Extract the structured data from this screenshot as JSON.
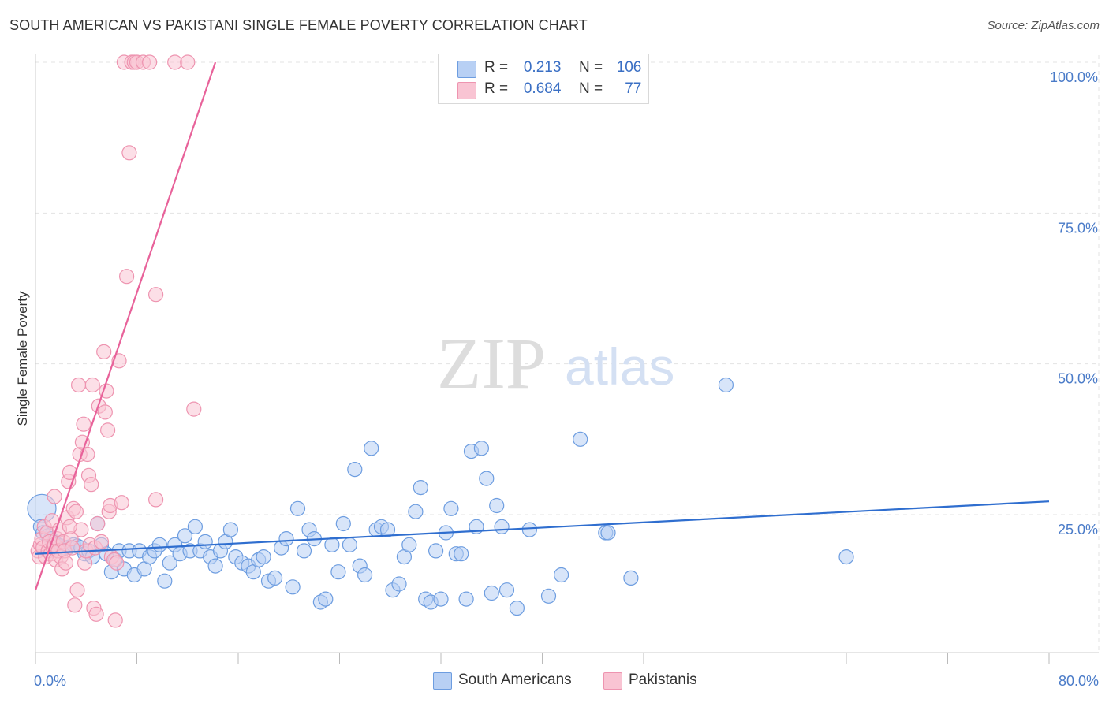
{
  "title": "SOUTH AMERICAN VS PAKISTANI SINGLE FEMALE POVERTY CORRELATION CHART",
  "source": "Source: ZipAtlas.com",
  "watermark": {
    "zip": "ZIP",
    "atlas": "atlas"
  },
  "legend": {
    "r_label": "R =",
    "n_label": "N =",
    "entries": [
      {
        "name": "South Americans",
        "r": "0.213",
        "n": "106",
        "fill": "#b8d0f4",
        "stroke": "#6d9de0"
      },
      {
        "name": "Pakistanis",
        "r": "0.684",
        "n": "77",
        "fill": "#f9c4d3",
        "stroke": "#ee94b0"
      }
    ]
  },
  "chart_data": {
    "type": "scatter",
    "title": "SOUTH AMERICAN VS PAKISTANI SINGLE FEMALE POVERTY CORRELATION CHART",
    "xlabel": "",
    "ylabel": "Single Female Poverty",
    "xlim": [
      0,
      85
    ],
    "ylim": [
      0,
      105
    ],
    "x_tick_labels": [
      "0.0%",
      "80.0%"
    ],
    "y_ticks": [
      25,
      50,
      75,
      100
    ],
    "y_tick_labels": [
      "25.0%",
      "50.0%",
      "75.0%",
      "100.0%"
    ],
    "grid": true,
    "series": [
      {
        "name": "South Americans",
        "color": "#6d9de0",
        "trend_color": "#2f6ecf",
        "trend": {
          "x0": 0,
          "y0": 18.5,
          "x1": 80,
          "y1": 27.2
        },
        "points": [
          [
            0.5,
            26.0
          ],
          [
            0.4,
            23.0
          ],
          [
            0.6,
            22.0
          ],
          [
            1.0,
            21.5
          ],
          [
            1.2,
            21.0
          ],
          [
            1.5,
            20.5
          ],
          [
            1.7,
            20.0
          ],
          [
            2.0,
            19.8
          ],
          [
            2.3,
            19.5
          ],
          [
            2.6,
            19.6
          ],
          [
            3.0,
            20.0
          ],
          [
            3.3,
            19.8
          ],
          [
            3.6,
            19.5
          ],
          [
            3.9,
            18.5
          ],
          [
            4.2,
            19.0
          ],
          [
            4.5,
            18.0
          ],
          [
            4.9,
            23.5
          ],
          [
            5.2,
            20.0
          ],
          [
            5.6,
            18.5
          ],
          [
            6.0,
            15.5
          ],
          [
            6.3,
            17.5
          ],
          [
            6.6,
            19.0
          ],
          [
            7.0,
            16.0
          ],
          [
            7.4,
            19.0
          ],
          [
            7.8,
            15.0
          ],
          [
            8.2,
            19.0
          ],
          [
            8.6,
            16.0
          ],
          [
            9.0,
            18.0
          ],
          [
            9.4,
            19.0
          ],
          [
            9.8,
            20.0
          ],
          [
            10.2,
            14.0
          ],
          [
            10.6,
            17.0
          ],
          [
            11.0,
            20.0
          ],
          [
            11.4,
            18.5
          ],
          [
            11.8,
            21.5
          ],
          [
            12.2,
            19.0
          ],
          [
            12.6,
            23.0
          ],
          [
            13.0,
            19.0
          ],
          [
            13.4,
            20.5
          ],
          [
            13.8,
            18.0
          ],
          [
            14.2,
            16.5
          ],
          [
            14.6,
            19.0
          ],
          [
            15.0,
            20.5
          ],
          [
            15.4,
            22.5
          ],
          [
            15.8,
            18.0
          ],
          [
            16.3,
            17.0
          ],
          [
            16.8,
            16.5
          ],
          [
            17.2,
            15.5
          ],
          [
            17.6,
            17.5
          ],
          [
            18.0,
            18.0
          ],
          [
            18.4,
            14.0
          ],
          [
            18.9,
            14.5
          ],
          [
            19.4,
            19.5
          ],
          [
            19.8,
            21.0
          ],
          [
            20.3,
            13.0
          ],
          [
            20.7,
            26.0
          ],
          [
            21.2,
            19.0
          ],
          [
            21.6,
            22.5
          ],
          [
            22.0,
            21.0
          ],
          [
            22.5,
            10.5
          ],
          [
            22.9,
            11.0
          ],
          [
            23.4,
            20.0
          ],
          [
            23.9,
            15.5
          ],
          [
            24.3,
            23.5
          ],
          [
            24.8,
            20.0
          ],
          [
            25.2,
            32.5
          ],
          [
            25.6,
            16.5
          ],
          [
            26.0,
            15.0
          ],
          [
            26.5,
            36.0
          ],
          [
            26.9,
            22.5
          ],
          [
            27.3,
            23.0
          ],
          [
            27.8,
            22.5
          ],
          [
            28.2,
            12.5
          ],
          [
            28.7,
            13.5
          ],
          [
            29.1,
            18.0
          ],
          [
            29.5,
            20.0
          ],
          [
            30.0,
            25.5
          ],
          [
            30.4,
            29.5
          ],
          [
            30.8,
            11.0
          ],
          [
            31.2,
            10.5
          ],
          [
            31.6,
            19.0
          ],
          [
            32.0,
            11.0
          ],
          [
            32.4,
            22.0
          ],
          [
            32.8,
            26.0
          ],
          [
            33.2,
            18.5
          ],
          [
            33.6,
            18.5
          ],
          [
            34.0,
            11.0
          ],
          [
            34.4,
            35.5
          ],
          [
            34.8,
            23.0
          ],
          [
            35.2,
            36.0
          ],
          [
            35.6,
            31.0
          ],
          [
            36.0,
            12.0
          ],
          [
            36.4,
            26.5
          ],
          [
            36.8,
            23.0
          ],
          [
            37.2,
            12.5
          ],
          [
            38.0,
            9.5
          ],
          [
            39.0,
            22.5
          ],
          [
            40.5,
            11.5
          ],
          [
            41.5,
            15.0
          ],
          [
            43.0,
            37.5
          ],
          [
            45.0,
            22.0
          ],
          [
            45.2,
            22.0
          ],
          [
            47.0,
            14.5
          ],
          [
            54.5,
            46.5
          ],
          [
            64.0,
            18.0
          ]
        ]
      },
      {
        "name": "Pakistanis",
        "color": "#ee94b0",
        "trend_color": "#e8629a",
        "trend": {
          "x0": 0,
          "y0": 12.5,
          "x1": 14.2,
          "y1": 100
        },
        "points": [
          [
            0.2,
            19.0
          ],
          [
            0.3,
            18.0
          ],
          [
            0.4,
            20.0
          ],
          [
            0.5,
            21.0
          ],
          [
            0.6,
            19.5
          ],
          [
            0.7,
            23.0
          ],
          [
            0.8,
            18.0
          ],
          [
            0.9,
            22.0
          ],
          [
            1.0,
            19.0
          ],
          [
            1.1,
            20.5
          ],
          [
            1.2,
            18.5
          ],
          [
            1.3,
            24.0
          ],
          [
            1.4,
            19.5
          ],
          [
            1.5,
            20.0
          ],
          [
            1.6,
            17.5
          ],
          [
            1.7,
            21.0
          ],
          [
            1.8,
            19.0
          ],
          [
            1.9,
            22.5
          ],
          [
            2.0,
            18.0
          ],
          [
            2.1,
            16.0
          ],
          [
            2.2,
            20.5
          ],
          [
            2.3,
            19.0
          ],
          [
            2.4,
            17.0
          ],
          [
            2.5,
            24.5
          ],
          [
            2.6,
            30.5
          ],
          [
            2.7,
            32.0
          ],
          [
            2.8,
            21.0
          ],
          [
            2.9,
            19.5
          ],
          [
            3.0,
            26.0
          ],
          [
            3.1,
            10.0
          ],
          [
            3.2,
            25.5
          ],
          [
            3.3,
            12.5
          ],
          [
            3.4,
            46.5
          ],
          [
            3.5,
            35.0
          ],
          [
            3.6,
            22.5
          ],
          [
            3.7,
            37.0
          ],
          [
            3.8,
            40.0
          ],
          [
            3.9,
            17.0
          ],
          [
            4.0,
            19.0
          ],
          [
            4.1,
            35.0
          ],
          [
            4.2,
            31.5
          ],
          [
            4.3,
            20.0
          ],
          [
            4.4,
            30.0
          ],
          [
            4.5,
            46.5
          ],
          [
            4.6,
            9.5
          ],
          [
            4.7,
            19.5
          ],
          [
            4.8,
            8.5
          ],
          [
            4.9,
            23.5
          ],
          [
            5.0,
            43.0
          ],
          [
            5.2,
            20.5
          ],
          [
            5.4,
            52.0
          ],
          [
            5.5,
            42.0
          ],
          [
            5.6,
            45.5
          ],
          [
            5.7,
            39.0
          ],
          [
            5.8,
            25.5
          ],
          [
            5.9,
            26.5
          ],
          [
            6.0,
            18.0
          ],
          [
            6.2,
            17.5
          ],
          [
            6.3,
            7.5
          ],
          [
            6.4,
            17.0
          ],
          [
            6.6,
            50.5
          ],
          [
            7.2,
            64.5
          ],
          [
            7.4,
            85.0
          ],
          [
            7.0,
            100.0
          ],
          [
            7.6,
            100.0
          ],
          [
            7.8,
            100.0
          ],
          [
            8.0,
            100.0
          ],
          [
            8.5,
            100.0
          ],
          [
            9.0,
            100.0
          ],
          [
            9.5,
            61.5
          ],
          [
            9.5,
            27.5
          ],
          [
            11.0,
            100.0
          ],
          [
            12.0,
            100.0
          ],
          [
            12.5,
            42.5
          ],
          [
            6.8,
            27.0
          ],
          [
            2.7,
            23.0
          ],
          [
            1.5,
            28.0
          ]
        ]
      }
    ]
  }
}
